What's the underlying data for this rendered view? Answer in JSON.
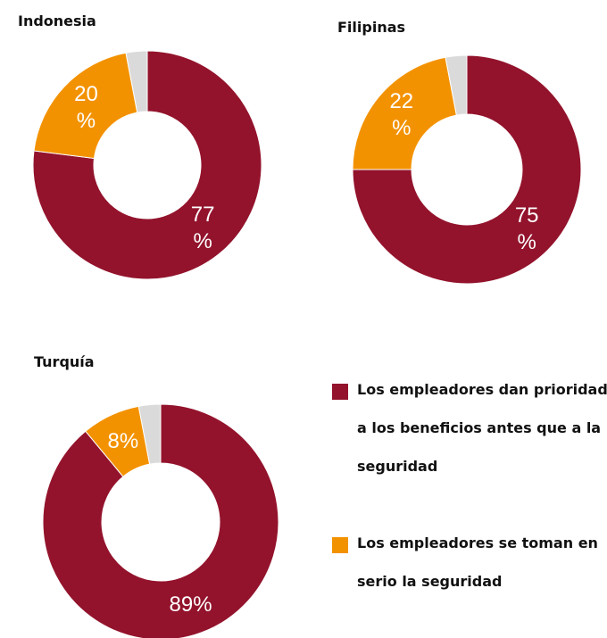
{
  "chart_data": [
    {
      "type": "pie",
      "title": "Indonesia",
      "values": [
        77,
        20,
        3
      ],
      "value_labels": [
        "77 %",
        "20 %",
        null
      ],
      "colors": [
        "#93132c",
        "#f39200",
        "#dadada"
      ]
    },
    {
      "type": "pie",
      "title": "Filipinas",
      "values": [
        75,
        22,
        3
      ],
      "value_labels": [
        "75 %",
        "22 %",
        null
      ],
      "colors": [
        "#93132c",
        "#f39200",
        "#dadada"
      ]
    },
    {
      "type": "pie",
      "title": "Turquía",
      "values": [
        89,
        8,
        3
      ],
      "value_labels": [
        "89%",
        "8%",
        null
      ],
      "colors": [
        "#93132c",
        "#f39200",
        "#dadada"
      ]
    }
  ],
  "legend": [
    {
      "name": "Los empleadores dan prioridad a los beneficios antes que a la seguridad",
      "color": "#93132c"
    },
    {
      "name": "Los empleadores se toman en serio la seguridad",
      "color": "#f39200"
    }
  ]
}
